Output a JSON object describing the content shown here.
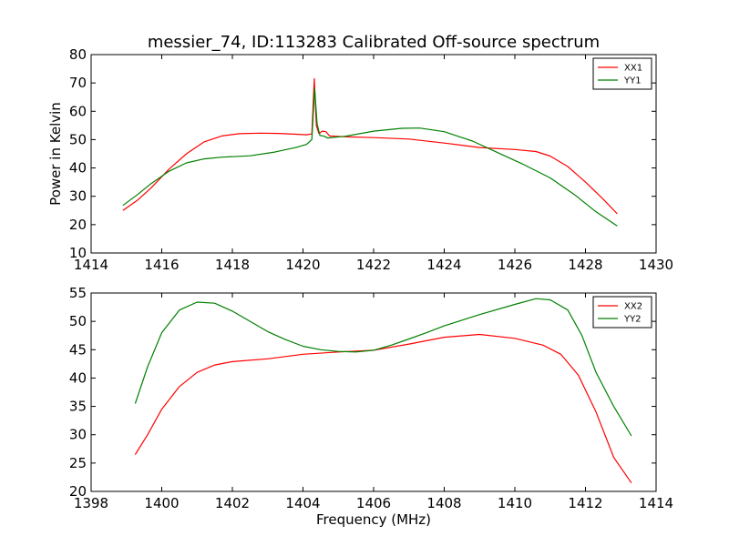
{
  "title": "messier_74, ID:113283 Calibrated Off-source spectrum",
  "chart_data": [
    {
      "type": "line",
      "title": "messier_74, ID:113283 Calibrated Off-source spectrum",
      "xlabel": "",
      "ylabel": "Power in Kelvin",
      "xlim": [
        1414,
        1430
      ],
      "ylim": [
        10,
        80
      ],
      "xticks": [
        1414,
        1416,
        1418,
        1420,
        1422,
        1424,
        1426,
        1428,
        1430
      ],
      "yticks": [
        10,
        20,
        30,
        40,
        50,
        60,
        70,
        80
      ],
      "legend_position": "top-right",
      "grid": false,
      "series": [
        {
          "name": "XX1",
          "color": "#ff0000",
          "points": [
            [
              1414.9,
              25.0
            ],
            [
              1415.3,
              28.5
            ],
            [
              1415.7,
              33.0
            ],
            [
              1416.2,
              39.5
            ],
            [
              1416.7,
              45.0
            ],
            [
              1417.2,
              49.2
            ],
            [
              1417.7,
              51.3
            ],
            [
              1418.2,
              52.1
            ],
            [
              1418.8,
              52.3
            ],
            [
              1419.3,
              52.2
            ],
            [
              1419.8,
              51.9
            ],
            [
              1420.1,
              51.7
            ],
            [
              1420.25,
              52.0
            ],
            [
              1420.32,
              71.5
            ],
            [
              1420.38,
              55.0
            ],
            [
              1420.45,
              52.2
            ],
            [
              1420.55,
              53.0
            ],
            [
              1420.65,
              52.8
            ],
            [
              1420.75,
              51.3
            ],
            [
              1421.2,
              51.0
            ],
            [
              1422.0,
              50.7
            ],
            [
              1423.0,
              50.2
            ],
            [
              1424.0,
              48.8
            ],
            [
              1425.0,
              47.2
            ],
            [
              1426.0,
              46.5
            ],
            [
              1426.6,
              45.8
            ],
            [
              1427.0,
              44.2
            ],
            [
              1427.5,
              40.5
            ],
            [
              1428.0,
              35.0
            ],
            [
              1428.5,
              29.0
            ],
            [
              1428.9,
              23.8
            ]
          ]
        },
        {
          "name": "YY1",
          "color": "#008000",
          "points": [
            [
              1414.9,
              26.8
            ],
            [
              1415.3,
              30.5
            ],
            [
              1415.7,
              34.5
            ],
            [
              1416.2,
              38.8
            ],
            [
              1416.7,
              41.8
            ],
            [
              1417.2,
              43.2
            ],
            [
              1417.7,
              43.8
            ],
            [
              1418.5,
              44.3
            ],
            [
              1419.2,
              45.6
            ],
            [
              1419.8,
              47.2
            ],
            [
              1420.1,
              48.3
            ],
            [
              1420.25,
              50.0
            ],
            [
              1420.33,
              68.0
            ],
            [
              1420.4,
              55.5
            ],
            [
              1420.48,
              51.5
            ],
            [
              1420.6,
              51.2
            ],
            [
              1420.7,
              50.6
            ],
            [
              1421.2,
              51.2
            ],
            [
              1422.0,
              53.0
            ],
            [
              1422.8,
              54.0
            ],
            [
              1423.3,
              54.1
            ],
            [
              1424.0,
              52.8
            ],
            [
              1424.8,
              49.5
            ],
            [
              1425.5,
              45.5
            ],
            [
              1426.2,
              41.5
            ],
            [
              1427.0,
              36.5
            ],
            [
              1427.7,
              30.5
            ],
            [
              1428.3,
              24.5
            ],
            [
              1428.9,
              19.5
            ]
          ]
        }
      ]
    },
    {
      "type": "line",
      "title": "",
      "xlabel": "Frequency (MHz)",
      "ylabel": "",
      "xlim": [
        1398,
        1414
      ],
      "ylim": [
        20,
        55
      ],
      "xticks": [
        1398,
        1400,
        1402,
        1404,
        1406,
        1408,
        1410,
        1412,
        1414
      ],
      "yticks": [
        20,
        25,
        30,
        35,
        40,
        45,
        50,
        55
      ],
      "legend_position": "top-right",
      "grid": false,
      "series": [
        {
          "name": "XX2",
          "color": "#ff0000",
          "points": [
            [
              1399.25,
              26.5
            ],
            [
              1399.6,
              30.0
            ],
            [
              1400.0,
              34.5
            ],
            [
              1400.5,
              38.5
            ],
            [
              1401.0,
              41.0
            ],
            [
              1401.5,
              42.3
            ],
            [
              1402.0,
              42.9
            ],
            [
              1403.0,
              43.4
            ],
            [
              1404.0,
              44.2
            ],
            [
              1405.0,
              44.6
            ],
            [
              1406.0,
              44.9
            ],
            [
              1407.0,
              46.0
            ],
            [
              1408.0,
              47.2
            ],
            [
              1409.0,
              47.7
            ],
            [
              1410.0,
              47.0
            ],
            [
              1410.8,
              45.8
            ],
            [
              1411.3,
              44.2
            ],
            [
              1411.8,
              40.5
            ],
            [
              1412.3,
              34.0
            ],
            [
              1412.8,
              26.0
            ],
            [
              1413.3,
              21.5
            ]
          ]
        },
        {
          "name": "YY2",
          "color": "#008000",
          "points": [
            [
              1399.25,
              35.5
            ],
            [
              1399.6,
              42.0
            ],
            [
              1400.0,
              48.0
            ],
            [
              1400.5,
              52.0
            ],
            [
              1401.0,
              53.4
            ],
            [
              1401.5,
              53.2
            ],
            [
              1402.0,
              51.8
            ],
            [
              1402.5,
              50.0
            ],
            [
              1403.0,
              48.2
            ],
            [
              1403.5,
              46.8
            ],
            [
              1404.0,
              45.6
            ],
            [
              1404.5,
              45.0
            ],
            [
              1405.0,
              44.7
            ],
            [
              1405.5,
              44.6
            ],
            [
              1406.0,
              44.9
            ],
            [
              1406.5,
              45.8
            ],
            [
              1407.0,
              46.9
            ],
            [
              1407.5,
              48.0
            ],
            [
              1408.0,
              49.2
            ],
            [
              1409.0,
              51.2
            ],
            [
              1410.0,
              53.0
            ],
            [
              1410.6,
              54.0
            ],
            [
              1411.0,
              53.8
            ],
            [
              1411.5,
              52.0
            ],
            [
              1411.9,
              47.5
            ],
            [
              1412.3,
              41.0
            ],
            [
              1412.8,
              35.0
            ],
            [
              1413.3,
              29.8
            ]
          ]
        }
      ]
    }
  ]
}
